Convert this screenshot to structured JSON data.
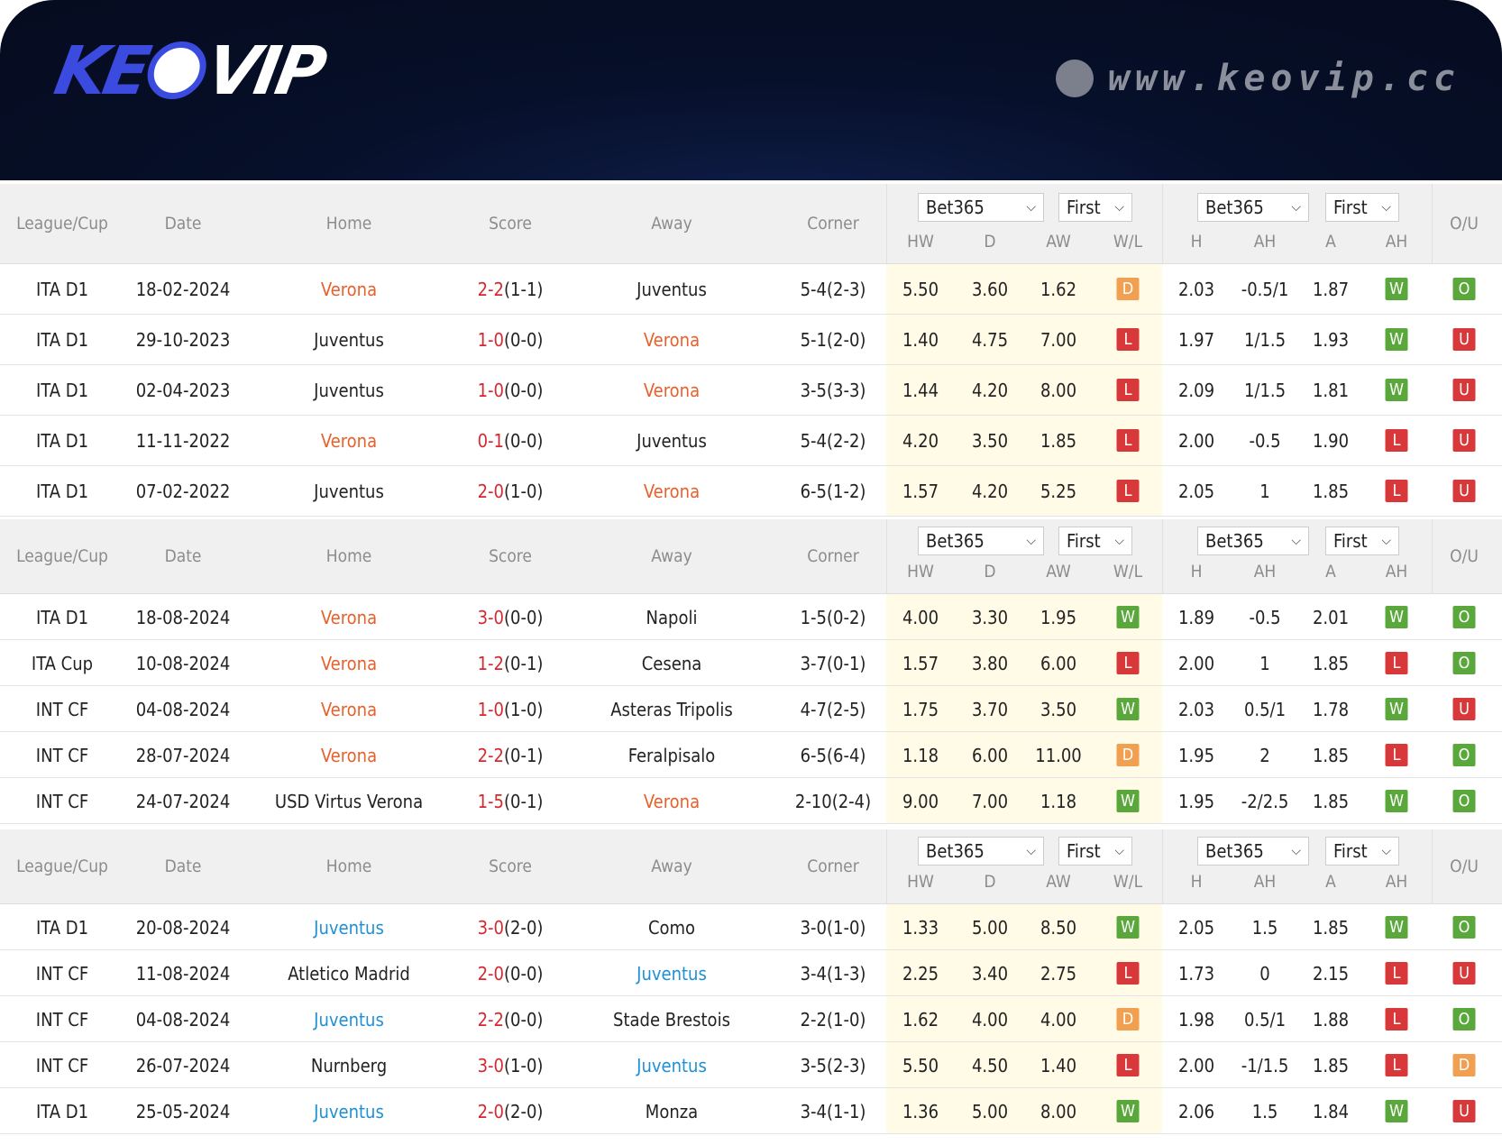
{
  "header": {
    "logo_text": "KEOVIP",
    "logo_sub": ".cc",
    "site_url": "www.keovip.cc"
  },
  "colors": {
    "W": "#5aa83c",
    "L": "#d9383a",
    "D": "#f0a050",
    "O": "#5aa83c",
    "U": "#d9383a",
    "highlight_orange": "#e8612c",
    "highlight_blue": "#1e90d6"
  },
  "columns": {
    "league": "League/Cup",
    "date": "Date",
    "home": "Home",
    "score": "Score",
    "away": "Away",
    "corner": "Corner",
    "hw": "HW",
    "d": "D",
    "aw": "AW",
    "wl": "W/L",
    "h": "H",
    "ah": "AH",
    "a": "A",
    "ah2": "AH",
    "ou": "O/U"
  },
  "selects": {
    "company": "Bet365",
    "period": "First"
  },
  "tables": [
    {
      "highlight_color": "orange",
      "rows": [
        {
          "league": "ITA D1",
          "date": "18-02-2024",
          "home": "Verona",
          "score": "2-2",
          "ht": "(1-1)",
          "away": "Juventus",
          "hl": "home",
          "corner": "5-4(2-3)",
          "hw": "5.50",
          "d": "3.60",
          "aw": "1.62",
          "wl": "D",
          "h": "2.03",
          "ah": "-0.5/1",
          "a": "1.87",
          "ah_res": "W",
          "ou": "O"
        },
        {
          "league": "ITA D1",
          "date": "29-10-2023",
          "home": "Juventus",
          "score": "1-0",
          "ht": "(0-0)",
          "away": "Verona",
          "hl": "away",
          "corner": "5-1(2-0)",
          "hw": "1.40",
          "d": "4.75",
          "aw": "7.00",
          "wl": "L",
          "h": "1.97",
          "ah": "1/1.5",
          "a": "1.93",
          "ah_res": "W",
          "ou": "U"
        },
        {
          "league": "ITA D1",
          "date": "02-04-2023",
          "home": "Juventus",
          "score": "1-0",
          "ht": "(0-0)",
          "away": "Verona",
          "hl": "away",
          "corner": "3-5(3-3)",
          "hw": "1.44",
          "d": "4.20",
          "aw": "8.00",
          "wl": "L",
          "h": "2.09",
          "ah": "1/1.5",
          "a": "1.81",
          "ah_res": "W",
          "ou": "U"
        },
        {
          "league": "ITA D1",
          "date": "11-11-2022",
          "home": "Verona",
          "score": "0-1",
          "ht": "(0-0)",
          "away": "Juventus",
          "hl": "home",
          "corner": "5-4(2-2)",
          "hw": "4.20",
          "d": "3.50",
          "aw": "1.85",
          "wl": "L",
          "h": "2.00",
          "ah": "-0.5",
          "a": "1.90",
          "ah_res": "L",
          "ou": "U"
        },
        {
          "league": "ITA D1",
          "date": "07-02-2022",
          "home": "Juventus",
          "score": "2-0",
          "ht": "(1-0)",
          "away": "Verona",
          "hl": "away",
          "corner": "6-5(1-2)",
          "hw": "1.57",
          "d": "4.20",
          "aw": "5.25",
          "wl": "L",
          "h": "2.05",
          "ah": "1",
          "a": "1.85",
          "ah_res": "L",
          "ou": "U"
        }
      ]
    },
    {
      "highlight_color": "orange",
      "rows": [
        {
          "league": "ITA D1",
          "date": "18-08-2024",
          "home": "Verona",
          "score": "3-0",
          "ht": "(0-0)",
          "away": "Napoli",
          "hl": "home",
          "corner": "1-5(0-2)",
          "hw": "4.00",
          "d": "3.30",
          "aw": "1.95",
          "wl": "W",
          "h": "1.89",
          "ah": "-0.5",
          "a": "2.01",
          "ah_res": "W",
          "ou": "O"
        },
        {
          "league": "ITA Cup",
          "date": "10-08-2024",
          "home": "Verona",
          "score": "1-2",
          "ht": "(0-1)",
          "away": "Cesena",
          "hl": "home",
          "corner": "3-7(0-1)",
          "hw": "1.57",
          "d": "3.80",
          "aw": "6.00",
          "wl": "L",
          "h": "2.00",
          "ah": "1",
          "a": "1.85",
          "ah_res": "L",
          "ou": "O"
        },
        {
          "league": "INT CF",
          "date": "04-08-2024",
          "home": "Verona",
          "score": "1-0",
          "ht": "(1-0)",
          "away": "Asteras Tripolis",
          "hl": "home",
          "corner": "4-7(2-5)",
          "hw": "1.75",
          "d": "3.70",
          "aw": "3.50",
          "wl": "W",
          "h": "2.03",
          "ah": "0.5/1",
          "a": "1.78",
          "ah_res": "W",
          "ou": "U"
        },
        {
          "league": "INT CF",
          "date": "28-07-2024",
          "home": "Verona",
          "score": "2-2",
          "ht": "(0-1)",
          "away": "Feralpisalo",
          "hl": "home",
          "corner": "6-5(6-4)",
          "hw": "1.18",
          "d": "6.00",
          "aw": "11.00",
          "wl": "D",
          "h": "1.95",
          "ah": "2",
          "a": "1.85",
          "ah_res": "L",
          "ou": "O"
        },
        {
          "league": "INT CF",
          "date": "24-07-2024",
          "home": "USD Virtus Verona",
          "score": "1-5",
          "ht": "(0-1)",
          "away": "Verona",
          "hl": "away",
          "corner": "2-10(2-4)",
          "hw": "9.00",
          "d": "7.00",
          "aw": "1.18",
          "wl": "W",
          "h": "1.95",
          "ah": "-2/2.5",
          "a": "1.85",
          "ah_res": "W",
          "ou": "O"
        }
      ]
    },
    {
      "highlight_color": "blue",
      "rows": [
        {
          "league": "ITA D1",
          "date": "20-08-2024",
          "home": "Juventus",
          "score": "3-0",
          "ht": "(2-0)",
          "away": "Como",
          "hl": "home",
          "corner": "3-0(1-0)",
          "hw": "1.33",
          "d": "5.00",
          "aw": "8.50",
          "wl": "W",
          "h": "2.05",
          "ah": "1.5",
          "a": "1.85",
          "ah_res": "W",
          "ou": "O"
        },
        {
          "league": "INT CF",
          "date": "11-08-2024",
          "home": "Atletico Madrid",
          "score": "2-0",
          "ht": "(0-0)",
          "away": "Juventus",
          "hl": "away",
          "corner": "3-4(1-3)",
          "hw": "2.25",
          "d": "3.40",
          "aw": "2.75",
          "wl": "L",
          "h": "1.73",
          "ah": "0",
          "a": "2.15",
          "ah_res": "L",
          "ou": "U"
        },
        {
          "league": "INT CF",
          "date": "04-08-2024",
          "home": "Juventus",
          "score": "2-2",
          "ht": "(0-0)",
          "away": "Stade Brestois",
          "hl": "home",
          "corner": "2-2(1-0)",
          "hw": "1.62",
          "d": "4.00",
          "aw": "4.00",
          "wl": "D",
          "h": "1.98",
          "ah": "0.5/1",
          "a": "1.88",
          "ah_res": "L",
          "ou": "O"
        },
        {
          "league": "INT CF",
          "date": "26-07-2024",
          "home": "Nurnberg",
          "score": "3-0",
          "ht": "(1-0)",
          "away": "Juventus",
          "hl": "away",
          "corner": "3-5(2-3)",
          "hw": "5.50",
          "d": "4.50",
          "aw": "1.40",
          "wl": "L",
          "h": "2.00",
          "ah": "-1/1.5",
          "a": "1.85",
          "ah_res": "L",
          "ou": "D"
        },
        {
          "league": "ITA D1",
          "date": "25-05-2024",
          "home": "Juventus",
          "score": "2-0",
          "ht": "(2-0)",
          "away": "Monza",
          "hl": "home",
          "corner": "3-4(1-1)",
          "hw": "1.36",
          "d": "5.00",
          "aw": "8.00",
          "wl": "W",
          "h": "2.06",
          "ah": "1.5",
          "a": "1.84",
          "ah_res": "W",
          "ou": "U"
        }
      ]
    }
  ]
}
